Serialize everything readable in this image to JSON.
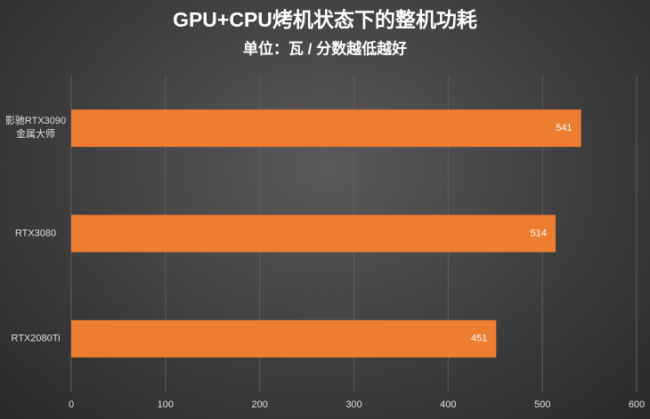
{
  "chart_data": {
    "type": "bar",
    "orientation": "horizontal",
    "title": "GPU+CPU烤机状态下的整机功耗",
    "subtitle": "单位：瓦 / 分数越低越好",
    "categories": [
      "影驰RTX3090\n金属大师",
      "RTX3080",
      "RTX2080Ti"
    ],
    "values": [
      541,
      514,
      451
    ],
    "color": "#ed7d31",
    "xlim": [
      0,
      600
    ],
    "xticks": [
      0,
      100,
      200,
      300,
      400,
      500,
      600
    ],
    "grid": true
  }
}
